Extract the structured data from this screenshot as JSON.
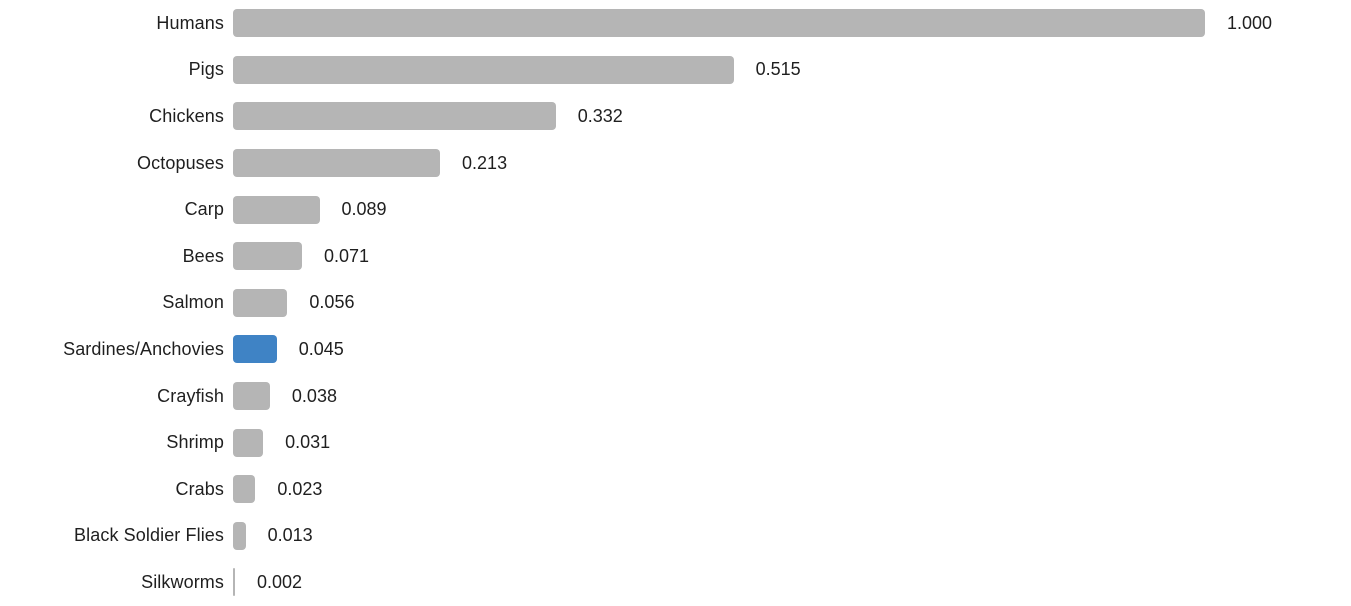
{
  "chart_data": {
    "type": "bar",
    "orientation": "horizontal",
    "title": "",
    "xlabel": "",
    "ylabel": "",
    "xlim": [
      0,
      1.0
    ],
    "grid": false,
    "legend": null,
    "value_format": "3-decimal",
    "categories": [
      "Humans",
      "Pigs",
      "Chickens",
      "Octopuses",
      "Carp",
      "Bees",
      "Salmon",
      "Sardines/Anchovies",
      "Crayfish",
      "Shrimp",
      "Crabs",
      "Black Soldier Flies",
      "Silkworms"
    ],
    "values": [
      1.0,
      0.515,
      0.332,
      0.213,
      0.089,
      0.071,
      0.056,
      0.045,
      0.038,
      0.031,
      0.023,
      0.013,
      0.002
    ],
    "value_labels": [
      "1.000",
      "0.515",
      "0.332",
      "0.213",
      "0.089",
      "0.071",
      "0.056",
      "0.045",
      "0.038",
      "0.031",
      "0.023",
      "0.013",
      "0.002"
    ],
    "highlighted_category": "Sardines/Anchovies",
    "highlight_index": 7,
    "colors": {
      "bar_default": "#b5b5b5",
      "bar_highlight": "#3f83c5",
      "text": "#1f1f1f",
      "background": "#ffffff"
    }
  }
}
